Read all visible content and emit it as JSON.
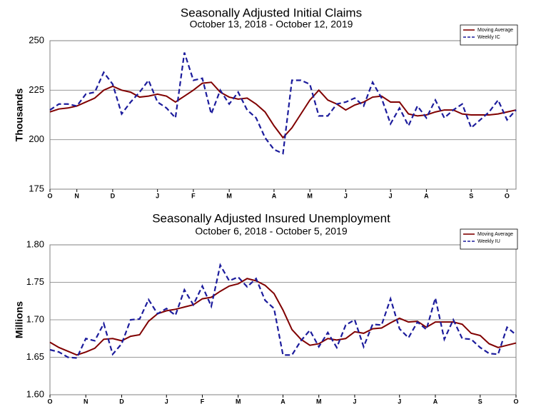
{
  "chart_data": [
    {
      "type": "line",
      "title": "Seasonally Adjusted Initial Claims",
      "subtitle": "October 13, 2018 - October 12, 2019",
      "y_label": "Thousands",
      "categories": [
        "O",
        null,
        null,
        "N",
        null,
        null,
        null,
        "D",
        null,
        null,
        null,
        null,
        "J",
        null,
        null,
        null,
        "F",
        null,
        null,
        null,
        "M",
        null,
        null,
        null,
        null,
        "A",
        null,
        null,
        null,
        "M",
        null,
        null,
        null,
        "J",
        null,
        null,
        null,
        null,
        "J",
        null,
        null,
        null,
        "A",
        null,
        null,
        null,
        null,
        "S",
        null,
        null,
        null,
        "O",
        null
      ],
      "series": [
        {
          "name": "Moving Average",
          "color": "#800000",
          "linestyle": "solid",
          "values": [
            214,
            215.5,
            216,
            217,
            219,
            221,
            225,
            227,
            225,
            224,
            221.5,
            222,
            223,
            222,
            219,
            222,
            225,
            228.5,
            229,
            224,
            221.5,
            220.5,
            221,
            218,
            214,
            207,
            201,
            206,
            213,
            220,
            225,
            220,
            218,
            215,
            217.5,
            219,
            221.5,
            222,
            219,
            219,
            213,
            212,
            212.5,
            214,
            215,
            215,
            213,
            212.5,
            212.5,
            212.5,
            213,
            214,
            215
          ]
        },
        {
          "name": "Weekly IC",
          "color": "#1c1c9c",
          "linestyle": "dashed",
          "values": [
            215,
            218,
            218,
            217,
            223,
            224,
            234,
            228,
            213,
            219,
            224,
            230,
            219,
            216,
            211,
            244,
            230,
            231,
            213,
            225,
            218,
            224,
            215,
            211,
            201,
            195,
            193,
            230,
            230,
            228,
            212,
            212,
            218,
            219,
            221,
            217,
            229,
            221,
            208,
            216,
            207,
            217,
            211,
            220,
            211,
            215,
            218,
            206,
            210,
            214,
            220,
            210,
            215
          ]
        }
      ],
      "ylim": [
        175,
        250
      ],
      "yticks": [
        175,
        200,
        225,
        250
      ],
      "grid": true,
      "legend": "upper right"
    },
    {
      "type": "line",
      "title": "Seasonally Adjusted Insured Unemployment",
      "subtitle": "October 6, 2018 - October 5, 2019",
      "y_label": "Millions",
      "categories": [
        "O",
        null,
        null,
        null,
        "N",
        null,
        null,
        null,
        "D",
        null,
        null,
        null,
        null,
        "J",
        null,
        null,
        null,
        "F",
        null,
        null,
        null,
        "M",
        null,
        null,
        null,
        null,
        "A",
        null,
        null,
        null,
        "M",
        null,
        null,
        null,
        "J",
        null,
        null,
        null,
        null,
        "J",
        null,
        null,
        null,
        "A",
        null,
        null,
        null,
        null,
        "S",
        null,
        null,
        null,
        "O"
      ],
      "series": [
        {
          "name": "Moving Average",
          "color": "#800000",
          "linestyle": "solid",
          "values": [
            1.67,
            1.663,
            1.658,
            1.653,
            1.657,
            1.662,
            1.674,
            1.675,
            1.672,
            1.678,
            1.68,
            1.698,
            1.708,
            1.712,
            1.714,
            1.717,
            1.72,
            1.728,
            1.73,
            1.738,
            1.745,
            1.748,
            1.755,
            1.752,
            1.746,
            1.735,
            1.713,
            1.687,
            1.674,
            1.666,
            1.668,
            1.675,
            1.673,
            1.675,
            1.684,
            1.682,
            1.688,
            1.689,
            1.696,
            1.702,
            1.697,
            1.698,
            1.69,
            1.697,
            1.697,
            1.697,
            1.694,
            1.682,
            1.679,
            1.668,
            1.663,
            1.666,
            1.669
          ]
        },
        {
          "name": "Weekly IU",
          "color": "#1c1c9c",
          "linestyle": "dashed",
          "values": [
            1.66,
            1.657,
            1.65,
            1.649,
            1.675,
            1.672,
            1.695,
            1.654,
            1.668,
            1.7,
            1.701,
            1.727,
            1.708,
            1.715,
            1.706,
            1.74,
            1.72,
            1.745,
            1.718,
            1.773,
            1.752,
            1.757,
            1.744,
            1.755,
            1.726,
            1.715,
            1.653,
            1.653,
            1.672,
            1.686,
            1.664,
            1.683,
            1.663,
            1.693,
            1.7,
            1.664,
            1.694,
            1.693,
            1.728,
            1.688,
            1.676,
            1.697,
            1.687,
            1.729,
            1.674,
            1.7,
            1.675,
            1.674,
            1.663,
            1.655,
            1.654,
            1.69,
            1.68
          ]
        }
      ],
      "ylim": [
        1.6,
        1.8
      ],
      "yticks": [
        {
          "value": 1.6,
          "label": "1.60"
        },
        1.65,
        {
          "value": 1.7,
          "label": "1.70"
        },
        1.75,
        {
          "value": 1.8,
          "label": "1.80"
        }
      ],
      "grid": true,
      "legend": "upper right"
    }
  ]
}
